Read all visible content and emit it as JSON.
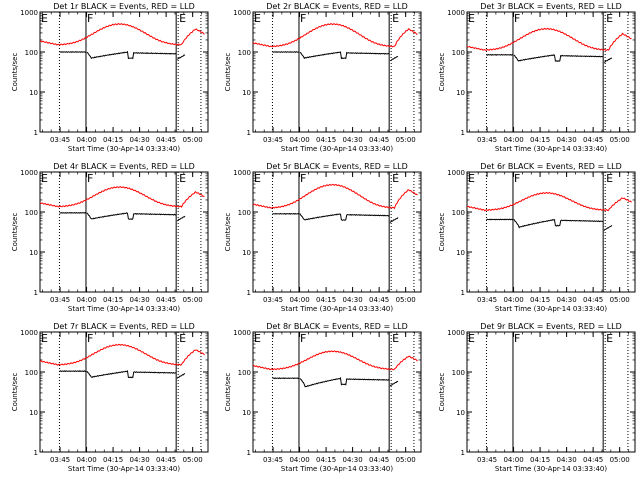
{
  "chart_data": {
    "type": "line",
    "layout": "3x3 grid",
    "x_ticks": [
      "03:45",
      "04:00",
      "04:15",
      "04:30",
      "04:45",
      "05:00"
    ],
    "xlabel": "Start Time (30-Apr-14 03:33:40)",
    "ylabel": "Counts/sec",
    "yscale": "log",
    "ylim": [
      1,
      1000
    ],
    "y_ticks": [
      "1",
      "10",
      "100",
      "1000"
    ],
    "xlim_minutes_after_start": [
      0,
      95
    ],
    "markers": [
      {
        "label": "E",
        "line_style": "none",
        "t": 0
      },
      {
        "label": "",
        "line_style": "dotted",
        "t": 11
      },
      {
        "label": "F",
        "line_style": "solid",
        "t": 26
      },
      {
        "label": "",
        "line_style": "solid",
        "t": 77
      },
      {
        "label": "E",
        "line_style": "dotted",
        "t": 77
      },
      {
        "label": "",
        "line_style": "dotted",
        "t": 91
      }
    ],
    "series_colors": {
      "events": "#000000",
      "lld": "#ff0000"
    },
    "panels": [
      {
        "title": "Det 1r BLACK = Events, RED = LLD",
        "lld_base": 150,
        "lld_peak": 500,
        "events_level": 100,
        "events_drop": 0.72,
        "events_end": 65
      },
      {
        "title": "Det 2r BLACK = Events, RED = LLD",
        "lld_base": 135,
        "lld_peak": 500,
        "events_level": 100,
        "events_drop": 0.72,
        "events_end": 60
      },
      {
        "title": "Det 3r BLACK = Events, RED = LLD",
        "lld_base": 110,
        "lld_peak": 380,
        "events_level": 85,
        "events_drop": 0.72,
        "events_end": 55
      },
      {
        "title": "Det 4r BLACK = Events, RED = LLD",
        "lld_base": 135,
        "lld_peak": 420,
        "events_level": 95,
        "events_drop": 0.72,
        "events_end": 60
      },
      {
        "title": "Det 5r BLACK = Events, RED = LLD",
        "lld_base": 125,
        "lld_peak": 480,
        "events_level": 90,
        "events_drop": 0.72,
        "events_end": 55
      },
      {
        "title": "Det 6r BLACK = Events, RED = LLD",
        "lld_base": 110,
        "lld_peak": 300,
        "events_level": 65,
        "events_drop": 0.65,
        "events_end": 35
      },
      {
        "title": "Det 7r BLACK = Events, RED = LLD",
        "lld_base": 150,
        "lld_peak": 480,
        "events_level": 105,
        "events_drop": 0.72,
        "events_end": 70
      },
      {
        "title": "Det 8r BLACK = Events, RED = LLD",
        "lld_base": 115,
        "lld_peak": 330,
        "events_level": 70,
        "events_drop": 0.62,
        "events_end": 45
      },
      {
        "title": "Det 9r BLACK = Events, RED = LLD"
      }
    ]
  }
}
